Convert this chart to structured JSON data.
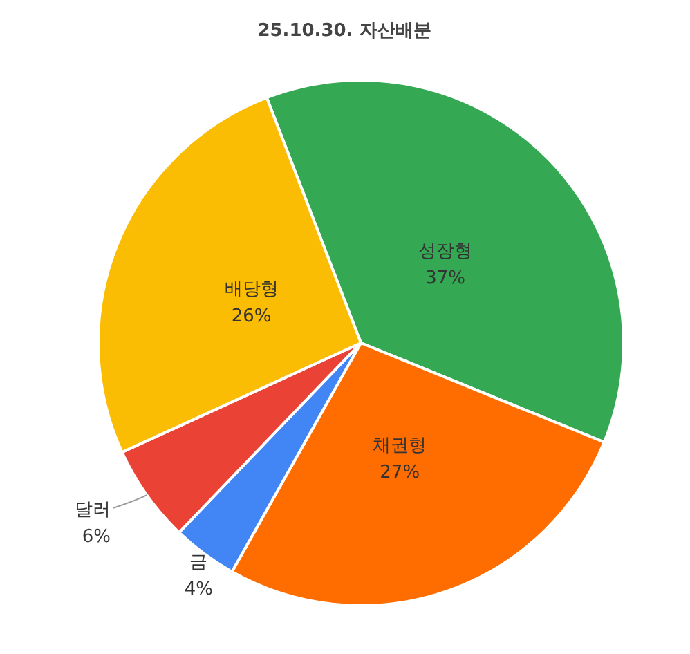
{
  "chart_data": {
    "type": "pie",
    "title": "25.10.30. 자산배분",
    "categories": [
      "성장형",
      "채권형",
      "금",
      "달러",
      "배당형"
    ],
    "values": [
      37,
      27,
      4,
      6,
      26
    ],
    "colors": [
      "#34a853",
      "#ff6d01",
      "#4285f4",
      "#ea4335",
      "#fbbc04"
    ],
    "value_labels": [
      "37%",
      "27%",
      "4%",
      "6%",
      "26%"
    ]
  }
}
